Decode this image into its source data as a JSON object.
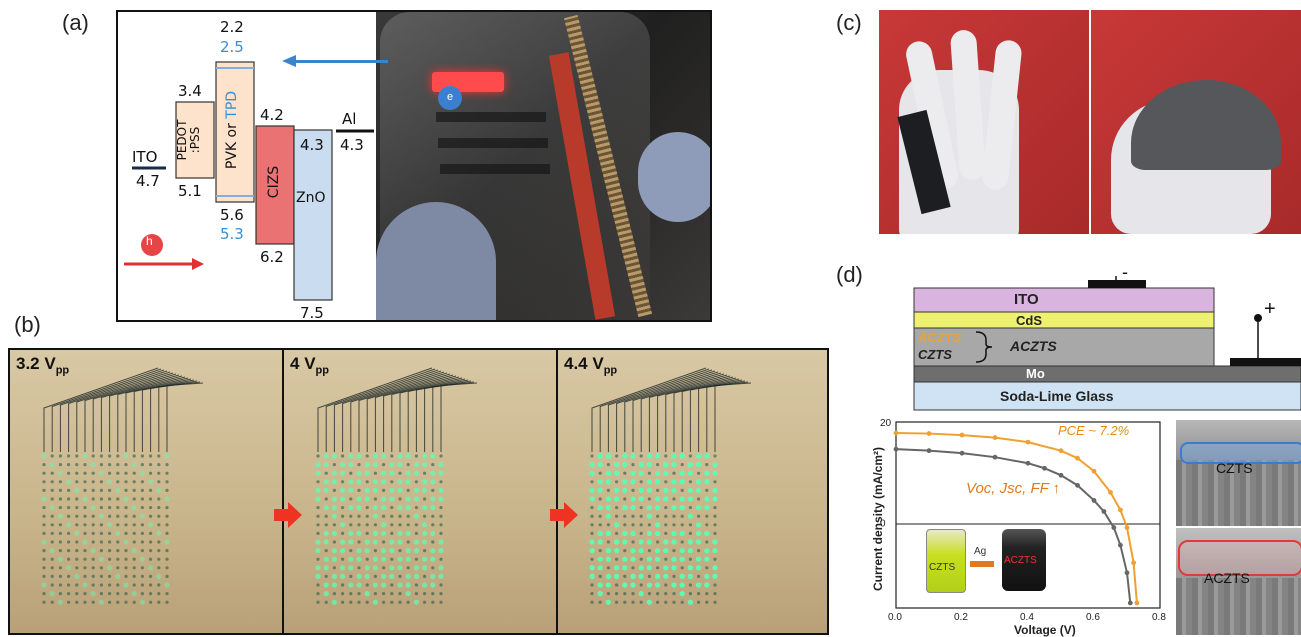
{
  "panels": {
    "a": "(a)",
    "b": "(b)",
    "c": "(c)",
    "d": "(d)"
  },
  "band_diagram": {
    "layers": [
      {
        "name": "ITO",
        "top": "4.7"
      },
      {
        "name": "PEDOT\n:PSS",
        "top": "3.4",
        "bottom": "5.1"
      },
      {
        "name_parts": [
          "PVK or ",
          "TPD"
        ],
        "top": "2.2",
        "top_alt": "2.5",
        "bottom": "5.6",
        "bottom_alt": "5.3"
      },
      {
        "name": "CIZS",
        "top": "4.2",
        "bottom": "6.2"
      },
      {
        "name": "ZnO",
        "top": "4.3",
        "bottom": "7.5"
      },
      {
        "name": "Al",
        "top": "4.3"
      }
    ],
    "electron": "e",
    "hole": "h"
  },
  "oled_panels": [
    {
      "voltage": "3.2",
      "unit": "pp"
    },
    {
      "voltage": "4",
      "unit": "pp"
    },
    {
      "voltage": "4.4",
      "unit": "pp"
    }
  ],
  "device_stack": {
    "layers": [
      "ITO",
      "CdS",
      "ACZTS",
      "Mo",
      "Soda-Lime Glass"
    ],
    "left_labels": [
      "ACZTS",
      "CZTS"
    ],
    "minus": "-",
    "plus": "+"
  },
  "chart_data": {
    "type": "line",
    "xlabel": "Voltage (V)",
    "ylabel": "Current density (mA/cm²)",
    "xlim": [
      0,
      0.8
    ],
    "ylim": [
      -17,
      20
    ],
    "x_ticks": [
      "0.0",
      "0.2",
      "0.4",
      "0.6",
      "0.8"
    ],
    "y_ticks": [
      "20",
      "0"
    ],
    "annotations": [
      "PCE ~ 7.2%",
      "Voc, Jsc, FF ↑"
    ],
    "inset_labels": [
      "CZTS",
      "Ag",
      "ACZTS"
    ],
    "series": [
      {
        "color": "#f0a030",
        "x": [
          0,
          0.1,
          0.2,
          0.3,
          0.4,
          0.5,
          0.55,
          0.6,
          0.65,
          0.68,
          0.7,
          0.72,
          0.73
        ],
        "y": [
          17.8,
          17.7,
          17.4,
          16.9,
          16.0,
          14.3,
          12.8,
          10.2,
          6.0,
          2.5,
          -1.0,
          -8.0,
          -16.0
        ]
      },
      {
        "color": "#666666",
        "x": [
          0,
          0.1,
          0.2,
          0.3,
          0.4,
          0.45,
          0.5,
          0.55,
          0.6,
          0.63,
          0.66,
          0.68,
          0.7,
          0.71
        ],
        "y": [
          14.6,
          14.3,
          13.8,
          13.0,
          11.8,
          10.8,
          9.4,
          7.4,
          4.4,
          2.2,
          -1.0,
          -4.5,
          -10.0,
          -16.0
        ]
      }
    ]
  },
  "sem_labels": [
    "CZTS",
    "ACZTS"
  ],
  "colors": {
    "orange": "#f0a030",
    "gray": "#666666",
    "ito": "#d8b4de",
    "cds": "#eef070",
    "aczts": "#a8a8a8",
    "mo": "#6e6e6e",
    "glass": "#cfe3f4"
  }
}
